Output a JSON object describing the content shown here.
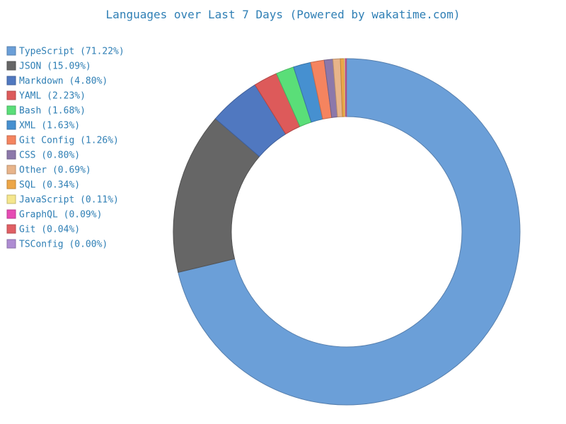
{
  "chart_data": {
    "type": "pie",
    "title": "Languages over Last 7 Days (Powered by wakatime.com)",
    "donut": true,
    "legend_position": "left",
    "slices": [
      {
        "label": "TypeScript (71.22%)",
        "value": 71.22,
        "color": "#6b9fd8"
      },
      {
        "label": "JSON (15.09%)",
        "value": 15.09,
        "color": "#666666"
      },
      {
        "label": "Markdown (4.80%)",
        "value": 4.8,
        "color": "#5078c0"
      },
      {
        "label": "YAML (2.23%)",
        "value": 2.23,
        "color": "#dd5a5a"
      },
      {
        "label": "Bash (1.68%)",
        "value": 1.68,
        "color": "#5ade78"
      },
      {
        "label": "XML (1.63%)",
        "value": 1.63,
        "color": "#4690d0"
      },
      {
        "label": "Git Config (1.26%)",
        "value": 1.26,
        "color": "#f5845f"
      },
      {
        "label": "CSS (0.80%)",
        "value": 0.8,
        "color": "#8c78aa"
      },
      {
        "label": "Other (0.69%)",
        "value": 0.69,
        "color": "#e8b48a"
      },
      {
        "label": "SQL (0.34%)",
        "value": 0.34,
        "color": "#eda646"
      },
      {
        "label": "JavaScript (0.11%)",
        "value": 0.11,
        "color": "#f5e68c"
      },
      {
        "label": "GraphQL (0.09%)",
        "value": 0.09,
        "color": "#e64bb4"
      },
      {
        "label": "Git (0.04%)",
        "value": 0.04,
        "color": "#e15f64"
      },
      {
        "label": "TSConfig (0.00%)",
        "value": 0.0,
        "color": "#ae8cd2"
      }
    ]
  }
}
